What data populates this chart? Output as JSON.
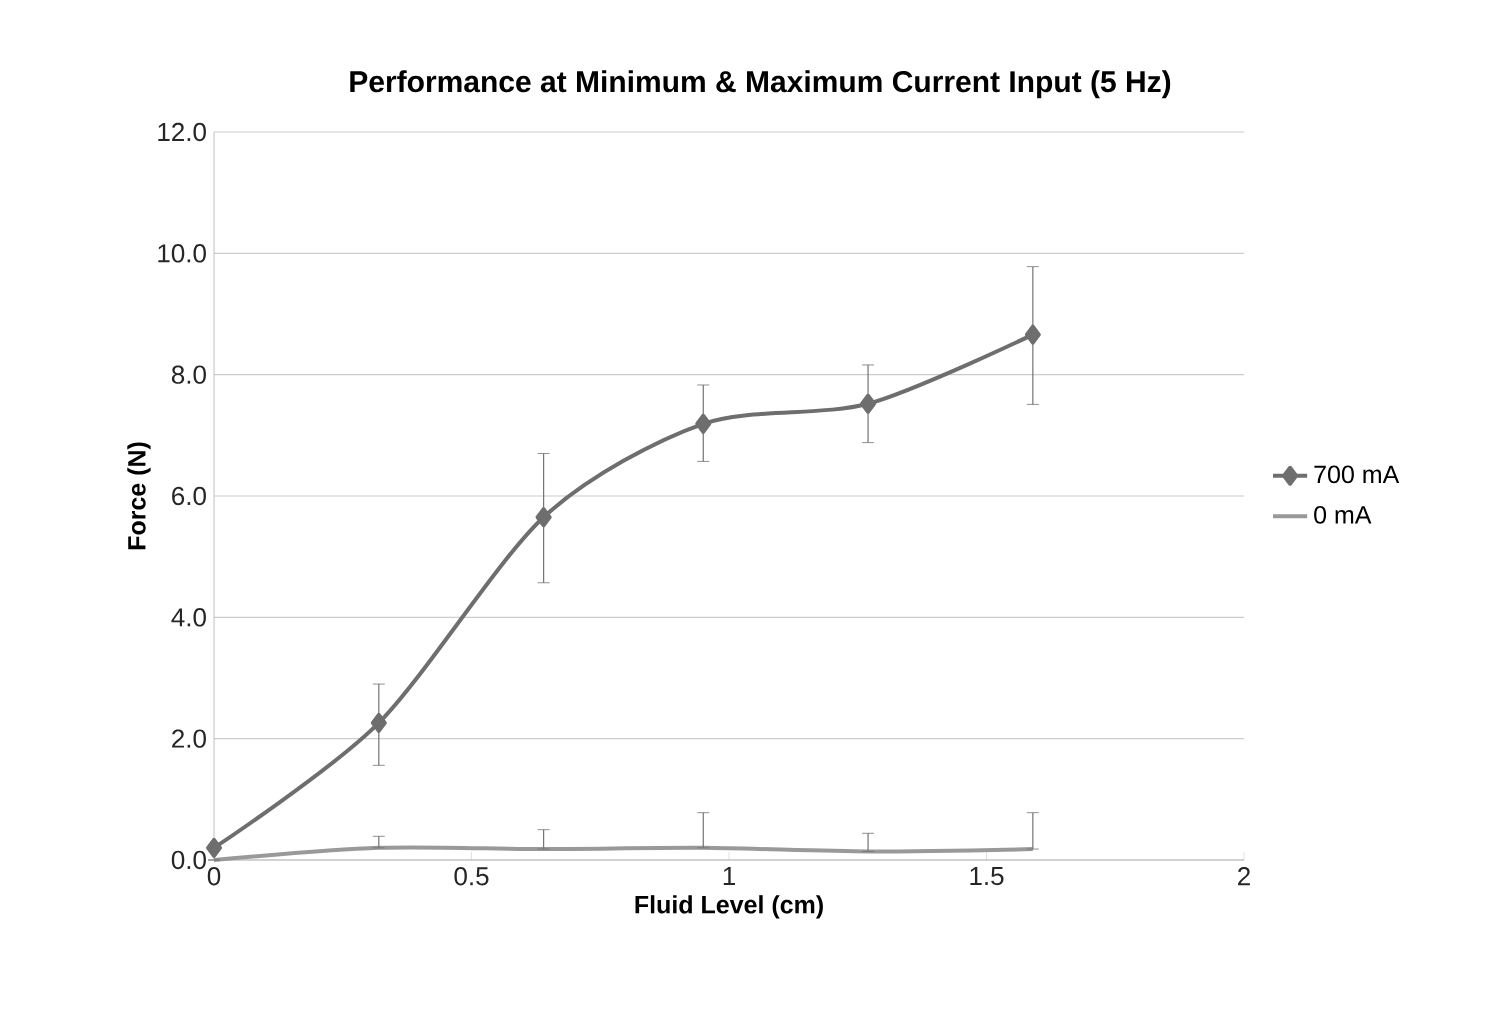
{
  "chart_data": {
    "type": "line",
    "title": "Performance at Minimum & Maximum Current Input (5 Hz)",
    "xlabel": "Fluid Level (cm)",
    "ylabel": "Force (N)",
    "x": [
      0,
      0.32,
      0.64,
      0.95,
      1.27,
      1.59
    ],
    "series": [
      {
        "name": "700 mA",
        "color": "#6e6e6e",
        "marker": "diamond",
        "values": [
          0.2,
          2.26,
          5.65,
          7.19,
          7.52,
          8.66
        ],
        "errors": [
          null,
          [
            1.56,
            2.9
          ],
          [
            4.57,
            6.7
          ],
          [
            6.57,
            7.83
          ],
          [
            6.88,
            8.16
          ],
          [
            7.51,
            9.78
          ]
        ]
      },
      {
        "name": "0 mA",
        "color": "#999999",
        "marker": "none",
        "values": [
          0.0,
          0.2,
          0.18,
          0.2,
          0.14,
          0.18
        ],
        "errors": [
          null,
          [
            0.2,
            0.39
          ],
          [
            0.18,
            0.5
          ],
          [
            0.2,
            0.78
          ],
          [
            0.14,
            0.44
          ],
          [
            0.18,
            0.78
          ]
        ]
      }
    ],
    "xlim": [
      0,
      2
    ],
    "xticks": [
      0,
      0.5,
      1,
      1.5,
      2
    ],
    "ylim": [
      0,
      12
    ],
    "yticks": [
      {
        "value": 0,
        "label": "0.0"
      },
      {
        "value": 2,
        "label": "2.0"
      },
      {
        "value": 4,
        "label": "4.0"
      },
      {
        "value": 6,
        "label": "6.0"
      },
      {
        "value": 8,
        "label": "8.0"
      },
      {
        "value": 10,
        "label": "10.0"
      },
      {
        "value": 12,
        "label": "12.0"
      }
    ],
    "grid": "y",
    "legend": "right"
  }
}
